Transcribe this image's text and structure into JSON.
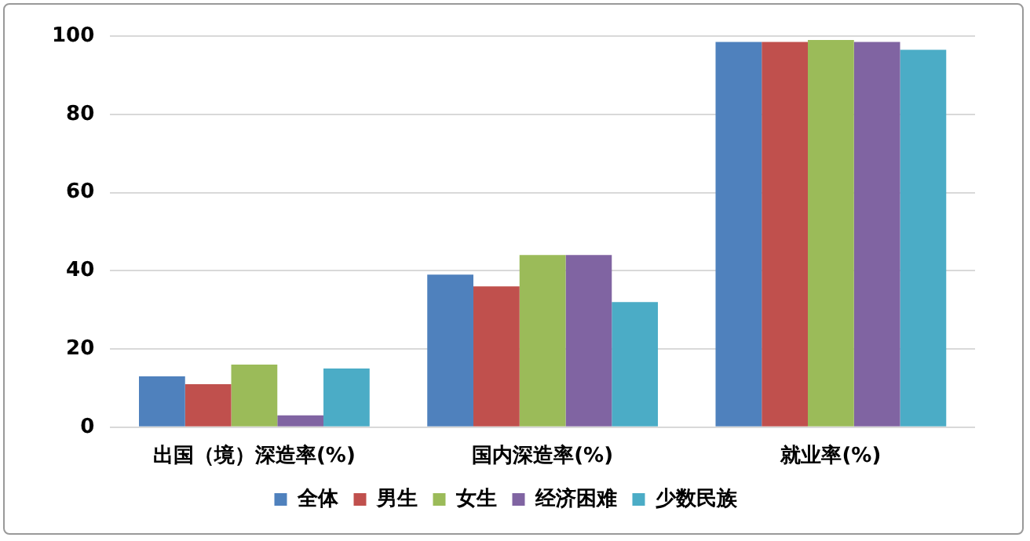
{
  "chart_data": {
    "type": "bar",
    "categories": [
      "出国（境）深造率(%)",
      "国内深造率(%)",
      "就业率(%)"
    ],
    "series": [
      {
        "name": "全体",
        "color": "#4f81bd",
        "values": [
          13,
          39,
          98.5
        ]
      },
      {
        "name": "男生",
        "color": "#c0504d",
        "values": [
          11,
          36,
          98.5
        ]
      },
      {
        "name": "女生",
        "color": "#9bbb59",
        "values": [
          16,
          44,
          99
        ]
      },
      {
        "name": "经济困难",
        "color": "#8064a2",
        "values": [
          3,
          44,
          98.5
        ]
      },
      {
        "name": "少数民族",
        "color": "#4bacc6",
        "values": [
          15,
          32,
          96.5
        ]
      }
    ],
    "ylim": [
      0,
      100
    ],
    "yticks": [
      0,
      20,
      40,
      60,
      80,
      100
    ],
    "grid": "y",
    "legend": "bottom"
  }
}
